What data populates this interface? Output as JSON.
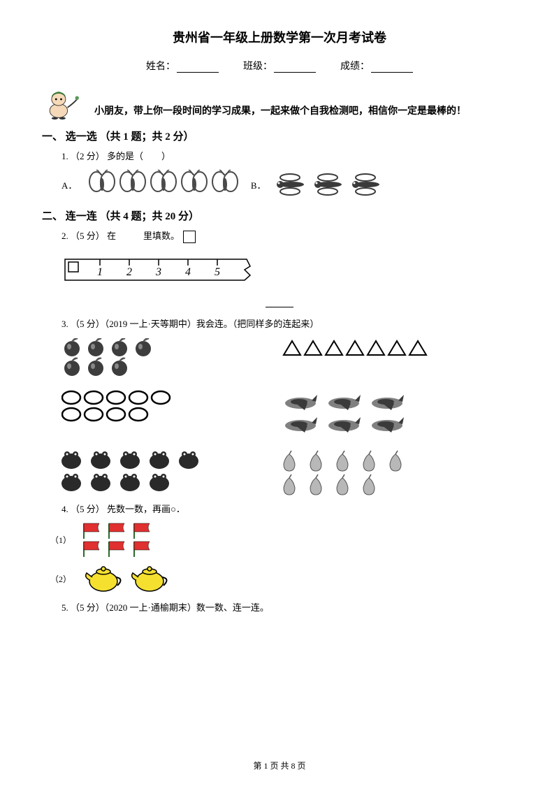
{
  "title": "贵州省一年级上册数学第一次月考试卷",
  "info": {
    "name_label": "姓名：",
    "class_label": "班级：",
    "score_label": "成绩："
  },
  "greeting": "小朋友，带上你一段时间的学习成果，一起来做个自我检测吧，相信你一定是最棒的！",
  "section1": {
    "header": "一、 选一选 （共 1 题；共 2 分）",
    "q1": {
      "text": "1. （2 分） 多的是（　　）",
      "optionA": "A．",
      "optionB": "B．",
      "butterfly_count": 5,
      "dragonfly_count": 3,
      "butterfly_color": "#ffffff",
      "butterfly_stroke": "#4a4a4a",
      "dragonfly_color": "#3a3a3a"
    }
  },
  "section2": {
    "header": "二、 连一连 （共 4 题；共 20 分）",
    "q2": {
      "text": "2. （5 分） 在　　　里填数。",
      "ruler_numbers": [
        "1",
        "2",
        "3",
        "4",
        "5"
      ],
      "ruler_bg": "#ffffff",
      "ruler_stroke": "#000000"
    },
    "q3": {
      "text": "3. （5 分）（2019 一上·天等期中）我会连。（把同样多的连起来）",
      "apples": {
        "count": 7,
        "color": "#3d3d3d",
        "leaf": "#555555"
      },
      "triangles": {
        "count": 7,
        "stroke": "#000000"
      },
      "ovals": {
        "count": 9,
        "stroke": "#000000"
      },
      "planes": {
        "count": 6,
        "color": "#808080",
        "dark": "#3a3a3a"
      },
      "frogs": {
        "count": 9,
        "color": "#2a2a2a"
      },
      "pears": {
        "count": 9,
        "color": "#b8b8b8",
        "stroke": "#555555"
      }
    },
    "q4": {
      "text": "4. （5 分） 先数一数，再画○．",
      "row1_label": "（1）",
      "row2_label": "（2）",
      "flags": {
        "count": 6,
        "color": "#e03030",
        "pole": "#2a6a2a"
      },
      "teapots": {
        "count": 2,
        "color": "#f5e030",
        "stroke": "#000000"
      }
    },
    "q5": {
      "text": "5. （5 分）（2020 一上·通榆期末）数一数、连一连。"
    }
  },
  "footer": "第 1 页 共 8 页"
}
